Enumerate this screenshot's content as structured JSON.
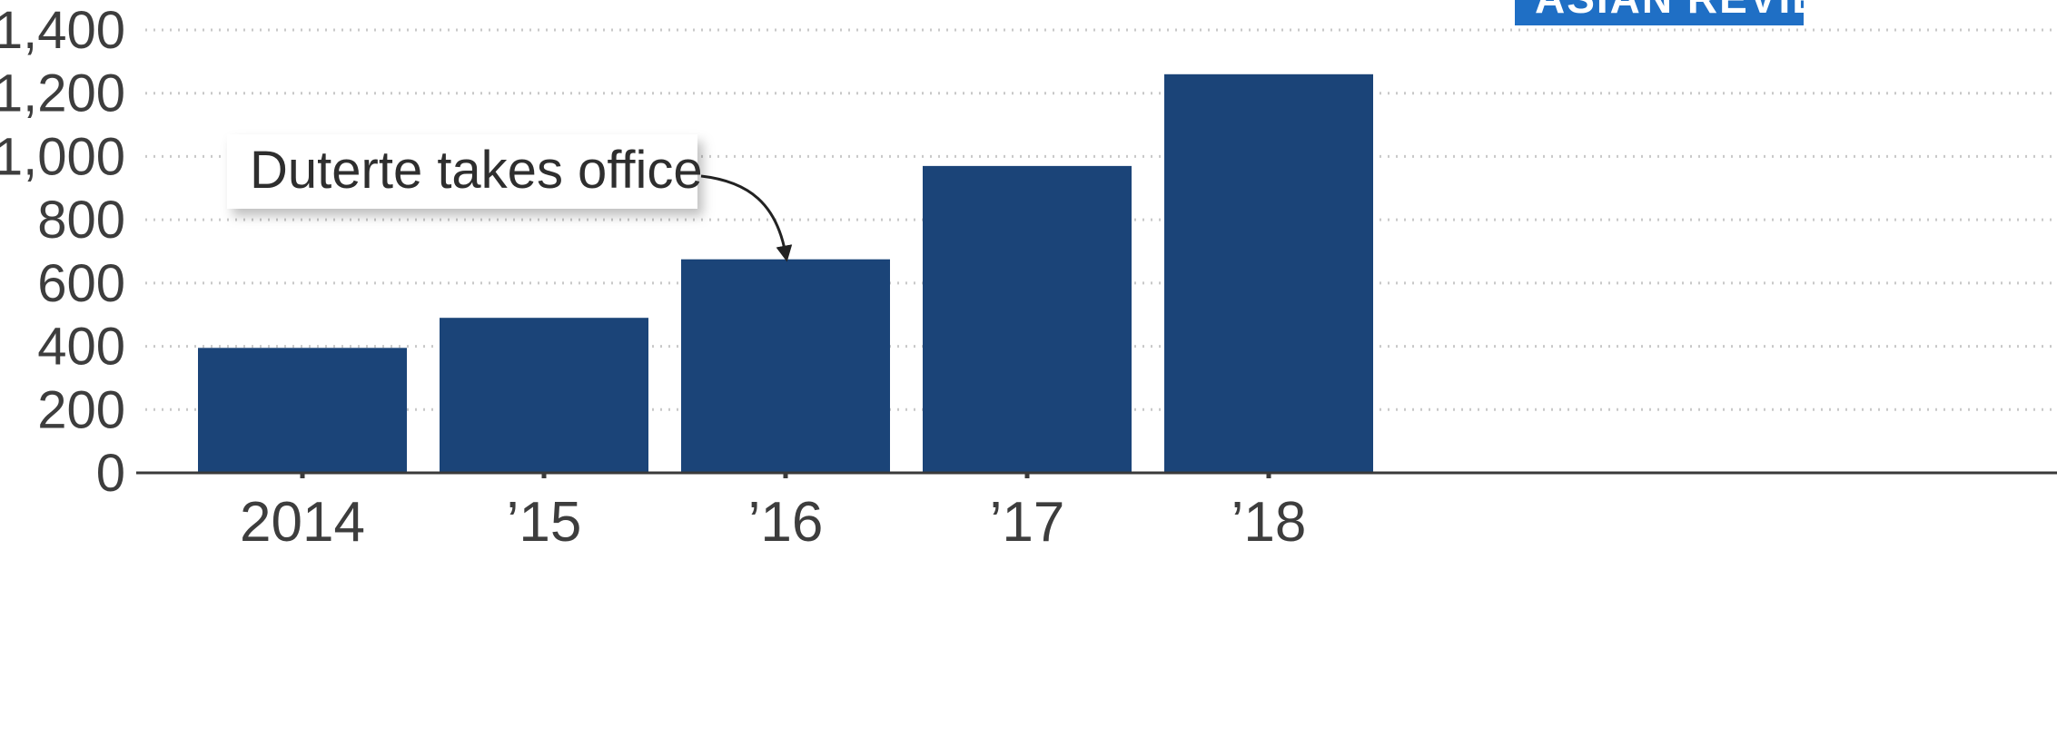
{
  "chart_data": {
    "type": "bar",
    "categories": [
      "2014",
      "'15",
      "'16",
      "'17",
      "'18"
    ],
    "category_labels": [
      "2014",
      "’15",
      "’16",
      "’17",
      "’18"
    ],
    "values": [
      395,
      490,
      675,
      970,
      1260
    ],
    "ylim": [
      0,
      1400
    ],
    "yticks": [
      0,
      200,
      400,
      600,
      800,
      1000,
      1200,
      1400
    ],
    "ytick_labels": [
      "0",
      "200",
      "400",
      "600",
      "800",
      "1,000",
      "1,200",
      "1,400"
    ],
    "grid": true,
    "bar_color": "#1b4478",
    "annotation": {
      "text": "Duterte takes office",
      "target_category": "'16"
    }
  },
  "brand": {
    "text": "ASIAN REVIEW",
    "color": "#1f6fc5"
  }
}
